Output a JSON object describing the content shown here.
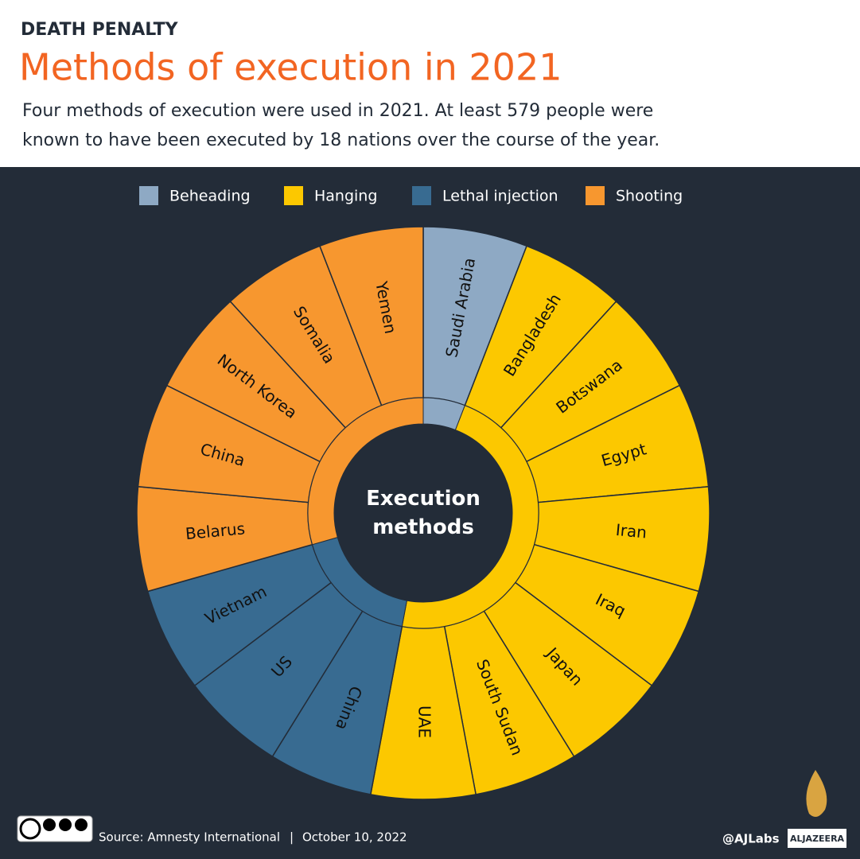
{
  "chart_data": {
    "type": "sunburst",
    "kicker": "DEATH PENALTY",
    "title": "Methods of execution in 2021",
    "subtitle": [
      "Four methods of execution were used in 2021. At least 579 people were",
      "known to have been executed by 18 nations over the course of the year."
    ],
    "center_label": "Execution methods",
    "series": [
      {
        "name": "Beheading",
        "color": "#8ea9c4",
        "categories": [
          "Saudi Arabia"
        ]
      },
      {
        "name": "Hanging",
        "color": "#fcc800",
        "categories": [
          "Bangladesh",
          "Botswana",
          "Egypt",
          "Iran",
          "Iraq",
          "Japan",
          "South Sudan",
          "UAE"
        ]
      },
      {
        "name": "Lethal injection",
        "color": "#386b91",
        "categories": [
          "China",
          "US",
          "Vietnam"
        ]
      },
      {
        "name": "Shooting",
        "color": "#f7972f",
        "categories": [
          "Belarus",
          "China",
          "North Korea",
          "Somalia",
          "Yemen"
        ]
      }
    ],
    "source": "Source: Amnesty International",
    "date": "October 10, 2022",
    "credit": "@AJLabs",
    "logo": "ALJAZEERA"
  }
}
